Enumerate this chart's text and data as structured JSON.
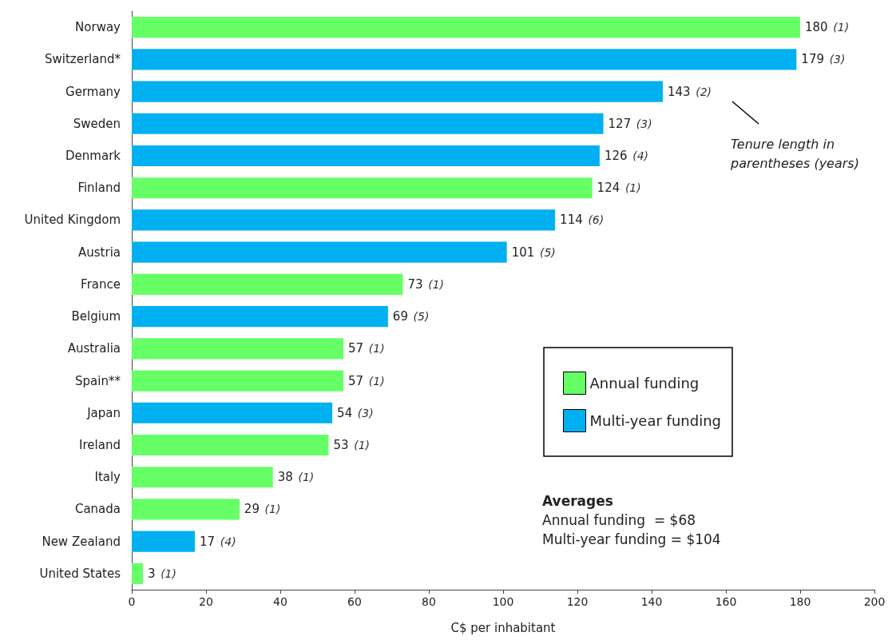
{
  "chart_data": {
    "type": "bar",
    "orientation": "horizontal",
    "stacked": true,
    "categories": [
      "Norway",
      "Switzerland*",
      "Germany",
      "Sweden",
      "Denmark",
      "Finland",
      "United Kingdom",
      "Austria",
      "France",
      "Belgium",
      "Australia",
      "Spain**",
      "Japan",
      "Ireland",
      "Italy",
      "Canada",
      "New Zealand",
      "United States"
    ],
    "series": [
      {
        "name": "Annual funding",
        "color": "#66ff66",
        "values": [
          180,
          null,
          null,
          null,
          null,
          124,
          null,
          null,
          73,
          null,
          57,
          57,
          null,
          53,
          38,
          29,
          null,
          3
        ],
        "value_labels": [
          "180 (1)",
          null,
          null,
          null,
          null,
          "124 (1)",
          null,
          null,
          "73 (1)",
          null,
          "57 (1)",
          "57 (1)",
          null,
          "53 (1)",
          "38 (1)",
          "29 (1)",
          null,
          "3 (1)"
        ]
      },
      {
        "name": "Multi-year funding",
        "color": "#00b0f0",
        "values": [
          null,
          179,
          143,
          127,
          126,
          null,
          114,
          101,
          null,
          69,
          null,
          null,
          54,
          null,
          null,
          null,
          17,
          null
        ],
        "value_labels": [
          null,
          "179 (3)",
          "143 (2)",
          "127 (3)",
          "126 (4)",
          null,
          "114 (6)",
          "101 (5)",
          null,
          "69 (5)",
          null,
          null,
          "54 (3)",
          null,
          null,
          null,
          "17 (4)",
          null
        ]
      }
    ],
    "xlabel": "C$ per inhabitant",
    "xlim": [
      0,
      200
    ],
    "xticks": [
      0,
      20,
      40,
      60,
      80,
      100,
      120,
      140,
      160,
      180,
      200
    ],
    "grid": false,
    "legend": "right",
    "annotations": [
      "Tenure length in parentheses (years)",
      "Averages",
      "Annual funding  = $68",
      "Multi-year funding = $104"
    ]
  }
}
